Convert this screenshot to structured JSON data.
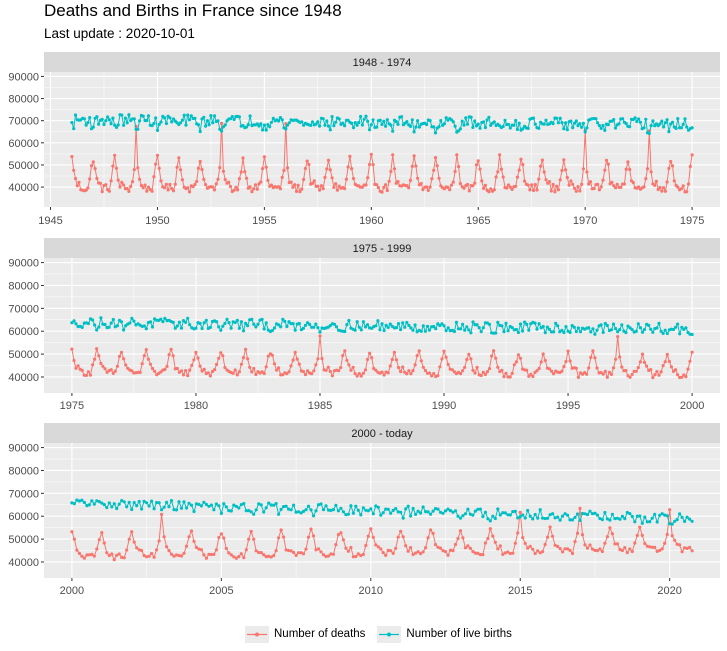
{
  "title": "Deaths and Births in France since 1948",
  "subtitle": "Last update : 2020-10-01",
  "colors": {
    "deaths": "#F8766D",
    "births": "#00BFC4",
    "panel_bg": "#EBEBEB",
    "strip_bg": "#D9D9D9",
    "grid": "#FFFFFF"
  },
  "legend": [
    {
      "key": "deaths",
      "label": "Number of deaths"
    },
    {
      "key": "births",
      "label": "Number of live births"
    }
  ],
  "chart_data": [
    {
      "type": "line",
      "strip": "1948 - 1974",
      "x_range": [
        1946.0,
        1975.0
      ],
      "x_ticks": [
        1945,
        1950,
        1955,
        1960,
        1965,
        1970,
        1975
      ],
      "ylim": [
        31000,
        92000
      ],
      "y_ticks": [
        40000,
        50000,
        60000,
        70000,
        80000,
        90000
      ],
      "series_models": [
        {
          "key": "deaths",
          "name": "Number of deaths",
          "base": 41000,
          "winter_amp": 12000,
          "trend": 0,
          "noise": 1800,
          "spike_years": [
            1949,
            1953,
            1956,
            1970,
            1973
          ],
          "spike_size": 14000
        },
        {
          "key": "births",
          "name": "Number of live births",
          "base": 70500,
          "winter_amp": -2500,
          "trend": -2000,
          "noise": 2600,
          "spike_years": [],
          "spike_size": 0
        }
      ]
    },
    {
      "type": "line",
      "strip": "1975 - 1999",
      "x_range": [
        1975.0,
        2000.0
      ],
      "x_ticks": [
        1975,
        1980,
        1985,
        1990,
        1995,
        2000
      ],
      "ylim": [
        33000,
        92000
      ],
      "y_ticks": [
        40000,
        50000,
        60000,
        70000,
        80000,
        90000
      ],
      "series_models": [
        {
          "key": "deaths",
          "name": "Number of deaths",
          "base": 43500,
          "winter_amp": 8000,
          "trend": -1000,
          "noise": 1400,
          "spike_years": [
            1985,
            1997
          ],
          "spike_size": 6000
        },
        {
          "key": "births",
          "name": "Number of live births",
          "base": 64000,
          "winter_amp": -1500,
          "trend": -3000,
          "noise": 2300,
          "spike_years": [],
          "spike_size": 0
        }
      ]
    },
    {
      "type": "line",
      "strip": "2000 - today",
      "x_range": [
        2000.0,
        2020.75
      ],
      "x_ticks": [
        2000,
        2005,
        2010,
        2015,
        2020
      ],
      "ylim": [
        33000,
        92000
      ],
      "y_ticks": [
        40000,
        50000,
        60000,
        70000,
        80000,
        90000
      ],
      "series_models": [
        {
          "key": "deaths",
          "name": "Number of deaths",
          "base": 43500,
          "winter_amp": 9000,
          "trend": 3500,
          "noise": 1300,
          "spike_years": [
            2003,
            2015,
            2017,
            2020
          ],
          "spike_size": 7000
        },
        {
          "key": "births",
          "name": "Number of live births",
          "base": 66000,
          "winter_amp": -1500,
          "trend": -7000,
          "noise": 2200,
          "spike_years": [],
          "spike_size": 0
        }
      ]
    }
  ]
}
